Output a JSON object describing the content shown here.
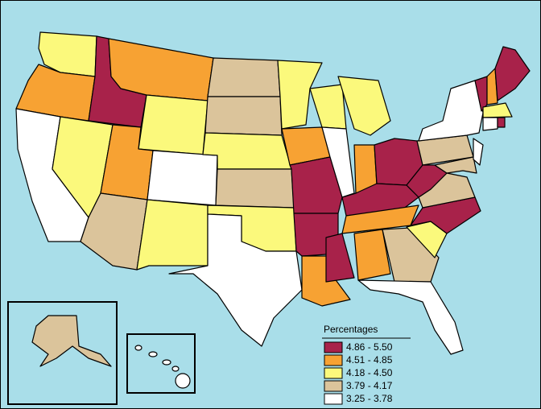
{
  "legend": {
    "title": "Percentages",
    "classes": [
      {
        "label": "4.86 - 5.50",
        "color": "#a8224a"
      },
      {
        "label": "4.51 - 4.85",
        "color": "#f7a233"
      },
      {
        "label": "4.18 - 4.50",
        "color": "#fbf97c"
      },
      {
        "label": "3.79 - 4.17",
        "color": "#dbc49b"
      },
      {
        "label": "3.25 - 3.78",
        "color": "#ffffff"
      }
    ]
  },
  "background_color": "#a9dee9"
}
